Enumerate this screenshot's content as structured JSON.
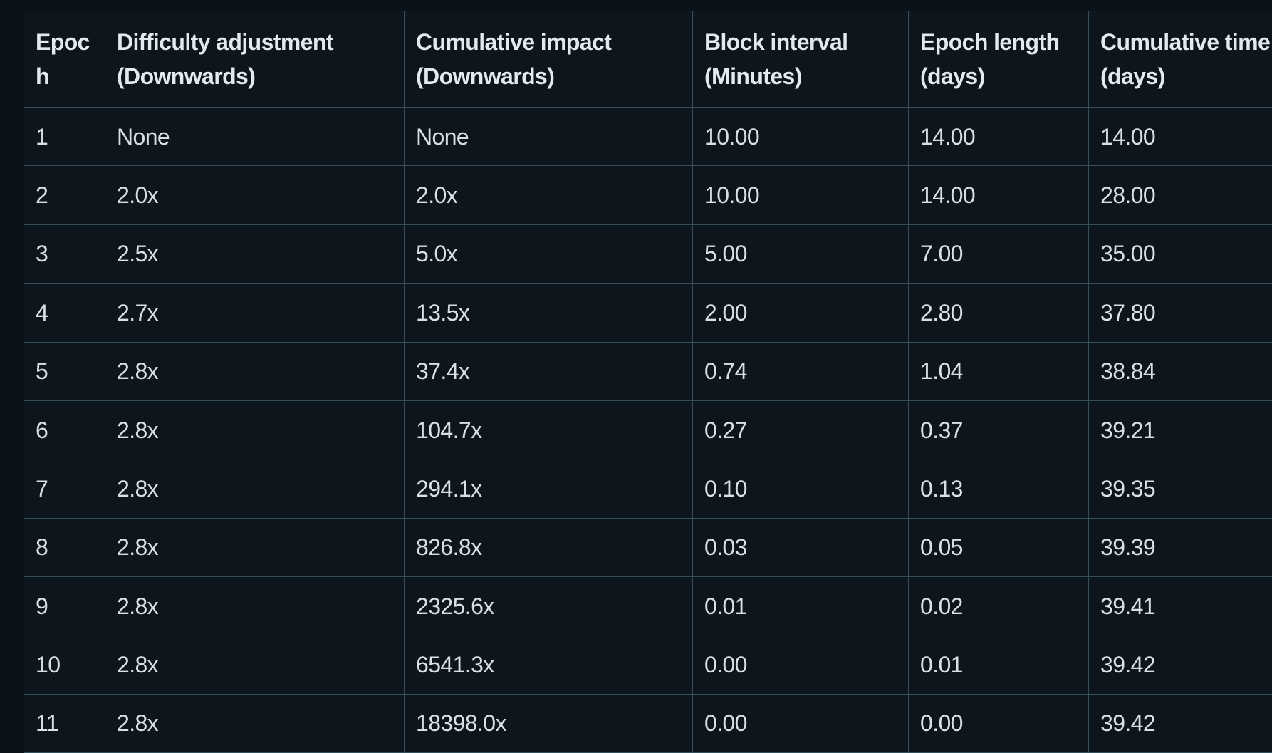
{
  "theme": {
    "page_background": "#0b131a",
    "cell_background": "#0d161d",
    "border_color": "#35505b",
    "header_text_color": "#e2eaf0",
    "body_text_color": "#d6e0e6"
  },
  "table": {
    "columns": [
      {
        "id": "epoch",
        "label": "Epoch"
      },
      {
        "id": "difficulty_adjustment",
        "label": "Difficulty adjustment (Downwards)"
      },
      {
        "id": "cumulative_impact",
        "label": "Cumulative impact (Downwards)"
      },
      {
        "id": "block_interval",
        "label": "Block interval (Minutes)"
      },
      {
        "id": "epoch_length",
        "label": "Epoch length (days)"
      },
      {
        "id": "cumulative_time",
        "label": "Cumulative time (days)"
      }
    ],
    "rows": [
      [
        "1",
        "None",
        "None",
        "10.00",
        "14.00",
        "14.00"
      ],
      [
        "2",
        "2.0x",
        "2.0x",
        "10.00",
        "14.00",
        "28.00"
      ],
      [
        "3",
        "2.5x",
        "5.0x",
        "5.00",
        "7.00",
        "35.00"
      ],
      [
        "4",
        "2.7x",
        "13.5x",
        "2.00",
        "2.80",
        "37.80"
      ],
      [
        "5",
        "2.8x",
        "37.4x",
        "0.74",
        "1.04",
        "38.84"
      ],
      [
        "6",
        "2.8x",
        "104.7x",
        "0.27",
        "0.37",
        "39.21"
      ],
      [
        "7",
        "2.8x",
        "294.1x",
        "0.10",
        "0.13",
        "39.35"
      ],
      [
        "8",
        "2.8x",
        "826.8x",
        "0.03",
        "0.05",
        "39.39"
      ],
      [
        "9",
        "2.8x",
        "2325.6x",
        "0.01",
        "0.02",
        "39.41"
      ],
      [
        "10",
        "2.8x",
        "6541.3x",
        "0.00",
        "0.01",
        "39.42"
      ],
      [
        "11",
        "2.8x",
        "18398.0x",
        "0.00",
        "0.00",
        "39.42"
      ]
    ]
  },
  "chart_data": {
    "type": "table",
    "columns": [
      "Epoch",
      "Difficulty adjustment (Downwards)",
      "Cumulative impact (Downwards)",
      "Block interval (Minutes)",
      "Epoch length (days)",
      "Cumulative time (days)"
    ],
    "rows": [
      [
        "1",
        "None",
        "None",
        "10.00",
        "14.00",
        "14.00"
      ],
      [
        "2",
        "2.0x",
        "2.0x",
        "10.00",
        "14.00",
        "28.00"
      ],
      [
        "3",
        "2.5x",
        "5.0x",
        "5.00",
        "7.00",
        "35.00"
      ],
      [
        "4",
        "2.7x",
        "13.5x",
        "2.00",
        "2.80",
        "37.80"
      ],
      [
        "5",
        "2.8x",
        "37.4x",
        "0.74",
        "1.04",
        "38.84"
      ],
      [
        "6",
        "2.8x",
        "104.7x",
        "0.27",
        "0.37",
        "39.21"
      ],
      [
        "7",
        "2.8x",
        "294.1x",
        "0.10",
        "0.13",
        "39.35"
      ],
      [
        "8",
        "2.8x",
        "826.8x",
        "0.03",
        "0.05",
        "39.39"
      ],
      [
        "9",
        "2.8x",
        "2325.6x",
        "0.01",
        "0.02",
        "39.41"
      ],
      [
        "10",
        "2.8x",
        "6541.3x",
        "0.00",
        "0.01",
        "39.42"
      ],
      [
        "11",
        "2.8x",
        "18398.0x",
        "0.00",
        "0.00",
        "39.42"
      ]
    ]
  }
}
